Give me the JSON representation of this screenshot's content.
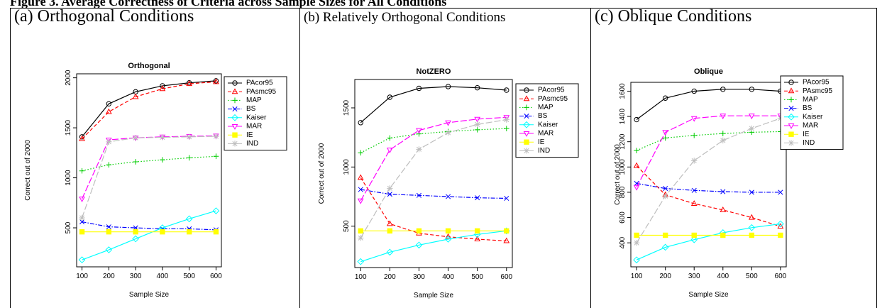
{
  "figure_caption": "Figure 3. Average Correctness of Criteria across Sample Sizes for All Conditions",
  "chart_data": [
    {
      "type": "line",
      "panel": "(a) Orthogonal  Conditions",
      "title": "Orthogonal",
      "xlabel": "Sample Size",
      "ylabel": "Correct out of 2000",
      "x": [
        100,
        200,
        300,
        400,
        500,
        600
      ],
      "xlim": [
        80,
        620
      ],
      "xticks": [
        100,
        200,
        300,
        400,
        500,
        600
      ],
      "ylim": [
        110,
        2040
      ],
      "yticks": [
        500,
        1000,
        1500,
        2000
      ],
      "legend": "outside-right",
      "series": [
        {
          "name": "PAcor95",
          "color": "#000000",
          "marker": "circle",
          "linestyle": "solid",
          "values": [
            1410,
            1740,
            1860,
            1920,
            1950,
            1970
          ]
        },
        {
          "name": "PAsmc95",
          "color": "#ff0000",
          "marker": "triangle",
          "linestyle": "dashed",
          "values": [
            1390,
            1660,
            1810,
            1890,
            1940,
            1960
          ]
        },
        {
          "name": "MAP",
          "color": "#00cd00",
          "marker": "plus",
          "linestyle": "dotted",
          "values": [
            1070,
            1130,
            1160,
            1180,
            1200,
            1215
          ]
        },
        {
          "name": "BS",
          "color": "#0000ff",
          "marker": "cross",
          "linestyle": "dashdot",
          "values": [
            560,
            510,
            500,
            490,
            490,
            480
          ]
        },
        {
          "name": "Kaiser",
          "color": "#00ffff",
          "marker": "diamond",
          "linestyle": "solid",
          "values": [
            180,
            280,
            390,
            500,
            590,
            670
          ]
        },
        {
          "name": "MAR",
          "color": "#ff00ff",
          "marker": "down-triangle",
          "linestyle": "longdash",
          "values": [
            790,
            1380,
            1400,
            1410,
            1415,
            1420
          ]
        },
        {
          "name": "IE",
          "color": "#ffff00",
          "marker": "square",
          "linestyle": "solid",
          "values": [
            460,
            460,
            460,
            460,
            460,
            460
          ]
        },
        {
          "name": "IND",
          "color": "#bebebe",
          "marker": "asterisk",
          "linestyle": "longdash",
          "values": [
            600,
            1360,
            1400,
            1405,
            1410,
            1415
          ]
        }
      ]
    },
    {
      "type": "line",
      "panel": "(b) Relatively Orthogonal Conditions",
      "title": "NotZERO",
      "xlabel": "Sample Size",
      "ylabel": "Correct out of 2000",
      "x": [
        100,
        200,
        300,
        400,
        500,
        600
      ],
      "xlim": [
        80,
        620
      ],
      "xticks": [
        100,
        200,
        300,
        400,
        500,
        600
      ],
      "ylim": [
        150,
        1740
      ],
      "yticks": [
        500,
        1000,
        1500
      ],
      "legend": "outside-right",
      "series": [
        {
          "name": "PAcor95",
          "color": "#000000",
          "marker": "circle",
          "linestyle": "solid",
          "values": [
            1375,
            1590,
            1665,
            1680,
            1670,
            1650
          ]
        },
        {
          "name": "PAsmc95",
          "color": "#ff0000",
          "marker": "triangle",
          "linestyle": "dashed",
          "values": [
            910,
            520,
            440,
            410,
            390,
            375
          ]
        },
        {
          "name": "MAP",
          "color": "#00cd00",
          "marker": "plus",
          "linestyle": "dotted",
          "values": [
            1120,
            1245,
            1280,
            1300,
            1315,
            1325
          ]
        },
        {
          "name": "BS",
          "color": "#0000ff",
          "marker": "cross",
          "linestyle": "dashdot",
          "values": [
            810,
            770,
            760,
            750,
            740,
            735
          ]
        },
        {
          "name": "Kaiser",
          "color": "#00ffff",
          "marker": "diamond",
          "linestyle": "solid",
          "values": [
            200,
            280,
            340,
            390,
            430,
            460
          ]
        },
        {
          "name": "MAR",
          "color": "#ff00ff",
          "marker": "down-triangle",
          "linestyle": "longdash",
          "values": [
            715,
            1145,
            1310,
            1375,
            1405,
            1420
          ]
        },
        {
          "name": "IE",
          "color": "#ffff00",
          "marker": "square",
          "linestyle": "solid",
          "values": [
            460,
            460,
            460,
            460,
            460,
            460
          ]
        },
        {
          "name": "IND",
          "color": "#bebebe",
          "marker": "asterisk",
          "linestyle": "longdash",
          "values": [
            400,
            820,
            1150,
            1290,
            1360,
            1400
          ]
        }
      ]
    },
    {
      "type": "line",
      "panel": "(c) Oblique Conditions",
      "title": "Oblique",
      "xlabel": "Sample Size",
      "ylabel": "Correct out of 2000",
      "x": [
        100,
        200,
        300,
        400,
        500,
        600
      ],
      "xlim": [
        80,
        620
      ],
      "xticks": [
        100,
        200,
        300,
        400,
        500,
        600
      ],
      "ylim": [
        210,
        1670
      ],
      "yticks": [
        400,
        600,
        800,
        1000,
        1200,
        1400,
        1600
      ],
      "legend": "outside-right",
      "series": [
        {
          "name": "PAcor95",
          "color": "#000000",
          "marker": "circle",
          "linestyle": "solid",
          "values": [
            1375,
            1545,
            1600,
            1615,
            1615,
            1600
          ]
        },
        {
          "name": "PAsmc95",
          "color": "#ff0000",
          "marker": "triangle",
          "linestyle": "dashed",
          "values": [
            1010,
            780,
            710,
            660,
            600,
            530
          ]
        },
        {
          "name": "MAP",
          "color": "#00cd00",
          "marker": "plus",
          "linestyle": "dotted",
          "values": [
            1130,
            1230,
            1250,
            1265,
            1275,
            1280
          ]
        },
        {
          "name": "BS",
          "color": "#0000ff",
          "marker": "cross",
          "linestyle": "dashdot",
          "values": [
            870,
            830,
            815,
            805,
            800,
            800
          ]
        },
        {
          "name": "Kaiser",
          "color": "#00ffff",
          "marker": "diamond",
          "linestyle": "solid",
          "values": [
            265,
            365,
            425,
            480,
            520,
            550
          ]
        },
        {
          "name": "MAR",
          "color": "#ff00ff",
          "marker": "down-triangle",
          "linestyle": "longdash",
          "values": [
            840,
            1275,
            1385,
            1405,
            1405,
            1405
          ]
        },
        {
          "name": "IE",
          "color": "#ffff00",
          "marker": "square",
          "linestyle": "solid",
          "values": [
            460,
            460,
            460,
            460,
            460,
            460
          ]
        },
        {
          "name": "IND",
          "color": "#bebebe",
          "marker": "asterisk",
          "linestyle": "longdash",
          "values": [
            400,
            770,
            1050,
            1210,
            1305,
            1385
          ]
        }
      ]
    }
  ]
}
